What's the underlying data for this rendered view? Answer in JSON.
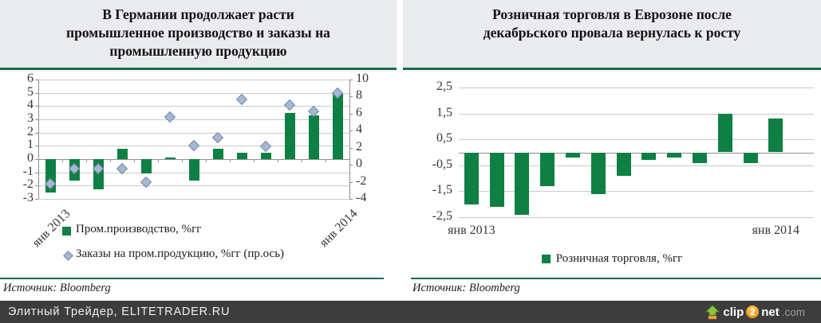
{
  "panels": {
    "germany": {
      "title_lines": [
        "В Германии продолжает расти",
        "промышленное производство и заказы на",
        "промышленную продукцию"
      ],
      "source": "Источник: Bloomberg"
    },
    "eurozone": {
      "title_lines": [
        "Розничная торговля в Еврозоне после",
        "декабрьского провала вернулась к росту"
      ],
      "source": "Источник: Bloomberg"
    }
  },
  "footer": {
    "site": "Элитный Трейдер, ELITETRADER.RU",
    "watermark": {
      "arrow_icon": "clip2net-upload-arrow",
      "clip": "clip",
      "two": "2",
      "net": "net",
      "com": ".com"
    }
  },
  "colors": {
    "bar_green": "#0f8044",
    "diamond_fill": "#a6b8d2",
    "diamond_border": "#7288ad",
    "header_bg": "#e9ebee",
    "rule_green": "#17694d",
    "footer_bg": "#3d3d3d",
    "gridline": "#c9cbcd",
    "axis_line": "#8f8f8f",
    "axis_text": "#363636"
  },
  "chart_data": [
    {
      "id": "germany-industry",
      "type": "combo",
      "title": "В Германии продолжает расти промышленное производство и заказы на промышленную продукцию",
      "x_count": 13,
      "x_tick_labels": [
        {
          "index": 0,
          "label": "янв 2013"
        },
        {
          "index": 12,
          "label": "янв 2014"
        }
      ],
      "axes": {
        "left": {
          "min": -3,
          "max": 6,
          "ticks": [
            6,
            5,
            4,
            3,
            2,
            1,
            0,
            -1,
            -2,
            -3
          ]
        },
        "right": {
          "min": -4,
          "max": 10,
          "ticks": [
            10,
            8,
            6,
            4,
            2,
            0,
            -2,
            -4
          ]
        }
      },
      "series": [
        {
          "name": "Пром.производство, %гг",
          "type": "bar",
          "axis": "left",
          "values": [
            -2.5,
            -1.6,
            -2.3,
            0.8,
            -1.1,
            0.1,
            -1.6,
            0.8,
            0.5,
            0.5,
            3.5,
            3.3,
            4.9
          ]
        },
        {
          "name": "Заказы на пром.продукцию, %гг (пр.ось)",
          "type": "scatter",
          "marker": "diamond",
          "axis": "right",
          "values": [
            -2.3,
            -0.5,
            -0.5,
            -0.5,
            -2.1,
            5.6,
            2.2,
            3.1,
            7.6,
            2.1,
            7.0,
            6.2,
            8.4
          ]
        }
      ],
      "grid": true,
      "legend_position": "bottom-left",
      "source": "Источник: Bloomberg"
    },
    {
      "id": "eurozone-retail",
      "type": "bar",
      "title": "Розничная торговля в Еврозоне после декабрьского провала вернулась к росту",
      "x_count": 13,
      "layout": {
        "extra_right_slots": 1
      },
      "x_tick_labels": [
        {
          "index": 0,
          "label": "янв 2013"
        },
        {
          "index": 12,
          "label": "янв 2014"
        }
      ],
      "axes": {
        "left": {
          "min": -2.5,
          "max": 2.5,
          "ticks": [
            2.5,
            1.5,
            0.5,
            -0.5,
            -1.5,
            -2.5
          ],
          "tick_labels": [
            "2,5",
            "1,5",
            "0,5",
            "-0,5",
            "-1,5",
            "-2,5"
          ]
        }
      },
      "series": [
        {
          "name": "Розничная торговля, %гг",
          "type": "bar",
          "axis": "left",
          "values": [
            -2.0,
            -2.1,
            -2.4,
            -1.3,
            -0.2,
            -1.6,
            -0.9,
            -0.3,
            -0.2,
            -0.4,
            1.5,
            -0.4,
            1.3
          ]
        }
      ],
      "grid": true,
      "legend_position": "bottom-center",
      "source": "Источник: Bloomberg"
    }
  ]
}
